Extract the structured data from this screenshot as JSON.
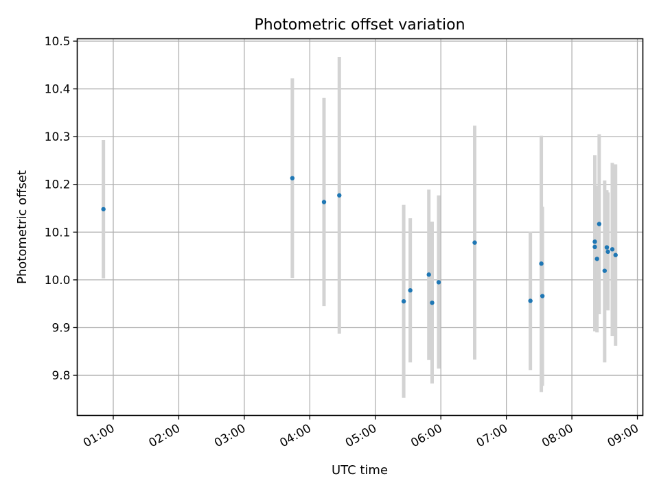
{
  "chart_data": {
    "type": "scatter",
    "title": "Photometric offset variation",
    "xlabel": "UTC time",
    "ylabel": "Photometric offset",
    "x_ticks": [
      "01:00",
      "02:00",
      "03:00",
      "04:00",
      "05:00",
      "06:00",
      "07:00",
      "08:00",
      "09:00"
    ],
    "y_ticks": [
      "9.8",
      "9.9",
      "10.0",
      "10.1",
      "10.2",
      "10.3",
      "10.4",
      "10.5"
    ],
    "xlim": [
      "00:27",
      "09:05"
    ],
    "ylim": [
      9.716,
      10.505
    ],
    "grid": true,
    "colors": {
      "point": "#1f77b4",
      "errorbar": "#d3d3d3",
      "grid": "#b0b0b0",
      "frame": "#000000"
    },
    "points": [
      {
        "x": "00:51",
        "y": 10.148,
        "ylow": 10.003,
        "yhigh": 10.293
      },
      {
        "x": "03:44",
        "y": 10.213,
        "ylow": 10.004,
        "yhigh": 10.422
      },
      {
        "x": "04:13",
        "y": 10.163,
        "ylow": 9.945,
        "yhigh": 10.381
      },
      {
        "x": "04:27",
        "y": 10.177,
        "ylow": 9.887,
        "yhigh": 10.467
      },
      {
        "x": "05:26",
        "y": 9.955,
        "ylow": 9.753,
        "yhigh": 10.157
      },
      {
        "x": "05:32",
        "y": 9.978,
        "ylow": 9.827,
        "yhigh": 10.129
      },
      {
        "x": "05:49",
        "y": 10.011,
        "ylow": 9.832,
        "yhigh": 10.189
      },
      {
        "x": "05:52",
        "y": 9.952,
        "ylow": 9.783,
        "yhigh": 10.122
      },
      {
        "x": "05:58",
        "y": 9.995,
        "ylow": 9.814,
        "yhigh": 10.177
      },
      {
        "x": "06:31",
        "y": 10.078,
        "ylow": 9.833,
        "yhigh": 10.323
      },
      {
        "x": "07:22",
        "y": 9.956,
        "ylow": 9.811,
        "yhigh": 10.101
      },
      {
        "x": "07:32",
        "y": 10.034,
        "ylow": 9.765,
        "yhigh": 10.302
      },
      {
        "x": "07:33",
        "y": 9.966,
        "ylow": 9.778,
        "yhigh": 10.153
      },
      {
        "x": "08:21",
        "y": 10.08,
        "ylow": 9.894,
        "yhigh": 10.261
      },
      {
        "x": "08:21",
        "y": 10.069,
        "ylow": 9.892,
        "yhigh": 10.245
      },
      {
        "x": "08:23",
        "y": 10.044,
        "ylow": 9.89,
        "yhigh": 10.197
      },
      {
        "x": "08:25",
        "y": 10.117,
        "ylow": 9.928,
        "yhigh": 10.305
      },
      {
        "x": "08:30",
        "y": 10.019,
        "ylow": 9.827,
        "yhigh": 10.208
      },
      {
        "x": "08:32",
        "y": 10.068,
        "ylow": 9.948,
        "yhigh": 10.188
      },
      {
        "x": "08:33",
        "y": 10.059,
        "ylow": 9.936,
        "yhigh": 10.183
      },
      {
        "x": "08:37",
        "y": 10.064,
        "ylow": 9.882,
        "yhigh": 10.245
      },
      {
        "x": "08:40",
        "y": 10.052,
        "ylow": 9.862,
        "yhigh": 10.242
      }
    ]
  }
}
